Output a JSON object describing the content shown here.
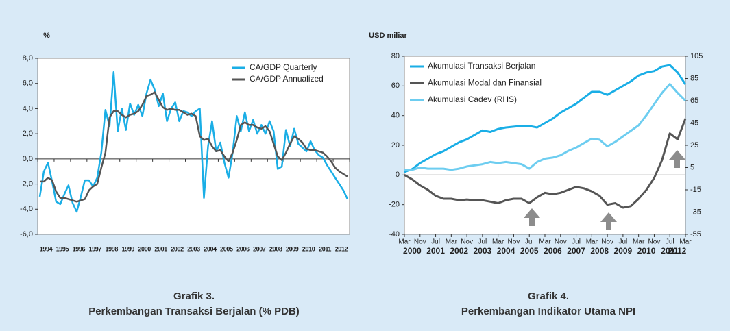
{
  "chart_data": [
    {
      "type": "line",
      "ylabel": "%",
      "title": "Grafik 3.",
      "subtitle": "Perkembangan Transaksi Berjalan (% PDB)",
      "legend": "upper right",
      "categories": [
        "1994",
        null,
        null,
        null,
        "1995",
        null,
        null,
        null,
        "1996",
        null,
        null,
        null,
        "1997",
        null,
        null,
        null,
        "1998",
        null,
        null,
        null,
        "1999",
        null,
        null,
        null,
        "2000",
        null,
        null,
        null,
        "2001",
        null,
        null,
        null,
        "2002",
        null,
        null,
        null,
        "2003",
        null,
        null,
        null,
        "2004",
        null,
        null,
        null,
        "2005",
        null,
        null,
        null,
        "2006",
        null,
        null,
        null,
        "2007",
        null,
        null,
        null,
        "2008",
        null,
        null,
        null,
        "2009",
        null,
        null,
        null,
        "2010",
        null,
        null,
        null,
        "2011",
        null,
        null,
        null,
        "2012",
        null,
        null,
        null
      ],
      "ylim": [
        -6,
        8
      ],
      "yticks": [
        {
          "value": -6,
          "label": "-6,0"
        },
        {
          "value": -4,
          "label": "-4,0"
        },
        {
          "value": -2,
          "label": "-2,0"
        },
        {
          "value": 0,
          "label": "0,0"
        },
        {
          "value": 2,
          "label": "2,0"
        },
        {
          "value": 4,
          "label": "4,0"
        },
        {
          "value": 6,
          "label": "6,0"
        },
        {
          "value": 8,
          "label": "8,0"
        }
      ],
      "series": [
        {
          "name": "CA/GDP Quarterly",
          "color": "#1aaee6",
          "values": [
            -3.0,
            -1.0,
            -0.3,
            -1.8,
            -3.4,
            -3.6,
            -2.8,
            -2.1,
            -3.5,
            -4.2,
            -3.0,
            -1.7,
            -1.7,
            -2.2,
            -1.5,
            0.5,
            3.9,
            2.6,
            6.9,
            2.2,
            4.0,
            2.3,
            4.4,
            3.5,
            4.3,
            3.4,
            5.2,
            6.3,
            5.5,
            4.2,
            5.2,
            3.0,
            4.0,
            4.5,
            3.0,
            3.8,
            3.7,
            3.4,
            3.8,
            4.0,
            -3.1,
            1.0,
            3.0,
            0.6,
            1.3,
            -0.3,
            -1.5,
            0.5,
            3.4,
            2.2,
            3.7,
            2.2,
            3.1,
            2.0,
            2.7,
            2.0,
            3.0,
            2.2,
            -0.8,
            -0.6,
            2.3,
            1.0,
            2.4,
            1.2,
            0.9,
            0.6,
            1.4,
            0.7,
            0.3,
            0.1,
            -0.5,
            -1.0,
            -1.5,
            -2.0,
            -2.5,
            -3.2
          ]
        },
        {
          "name": "CA/GDP Annualized",
          "color": "#555555",
          "values": [
            -1.8,
            -1.8,
            -1.5,
            -1.7,
            -2.6,
            -3.1,
            -3.1,
            -3.2,
            -3.3,
            -3.4,
            -3.3,
            -3.2,
            -2.5,
            -2.2,
            -2.0,
            -0.7,
            0.5,
            3.3,
            3.8,
            3.8,
            3.5,
            3.3,
            3.5,
            3.6,
            3.8,
            4.3,
            5.0,
            5.1,
            5.3,
            4.7,
            4.1,
            3.9,
            4.0,
            3.9,
            3.9,
            3.7,
            3.5,
            3.6,
            3.4,
            1.8,
            1.5,
            1.6,
            1.0,
            0.6,
            0.7,
            0.2,
            -0.2,
            0.5,
            1.5,
            2.7,
            2.9,
            2.7,
            2.7,
            2.5,
            2.4,
            2.6,
            2.2,
            1.2,
            0.2,
            -0.1,
            0.5,
            1.2,
            1.8,
            1.6,
            1.3,
            0.8,
            0.7,
            0.7,
            0.6,
            0.5,
            0.2,
            -0.2,
            -0.7,
            -1.0,
            -1.2,
            -1.4
          ]
        }
      ]
    },
    {
      "type": "line",
      "ylabel": "USD miliar",
      "title": "Grafik 4.",
      "subtitle": "Perkembangan Indikator Utama NPI",
      "legend": "upper left",
      "categories": [
        "Mar",
        null,
        "Nov",
        null,
        "Jul",
        null,
        "Mar",
        null,
        "Nov",
        null,
        "Jul",
        null,
        "Mar",
        null,
        "Nov",
        null,
        "Jul",
        null,
        "Mar",
        null,
        "Nov",
        null,
        "Jul",
        null,
        "Mar",
        null,
        "Nov",
        null,
        "Jul",
        null,
        "Mar",
        null,
        "Nov",
        null,
        "Jul",
        null,
        "Mar"
      ],
      "years": [
        "2000",
        "2001",
        "2002",
        "2003",
        "2004",
        "2005",
        "2006",
        "2007",
        "2008",
        "2009",
        "2010",
        "2011",
        "2012"
      ],
      "ylim": [
        -40,
        80
      ],
      "yticks": [
        -40,
        -20,
        0,
        20,
        40,
        60,
        80
      ],
      "y2lim": [
        -55,
        105
      ],
      "y2ticks": [
        -55,
        -35,
        -15,
        5,
        25,
        45,
        65,
        85,
        105
      ],
      "series": [
        {
          "name": "Akumulasi Transaksi Berjalan",
          "color": "#1aaee6",
          "values": [
            2,
            4,
            8,
            11,
            14,
            16,
            19,
            22,
            24,
            27,
            30,
            29,
            31,
            32,
            32.5,
            33,
            33,
            32,
            35,
            38,
            42,
            45,
            48,
            52,
            56,
            56,
            54,
            57,
            60,
            63,
            67,
            69,
            70,
            73,
            74,
            69,
            61
          ]
        },
        {
          "name": "Akumulasi Modal dan Finansial",
          "color": "#555555",
          "values": [
            0,
            -3,
            -7,
            -10,
            -14,
            -16,
            -16,
            -17,
            -16.5,
            -17,
            -17,
            -18,
            -19,
            -17,
            -16,
            -16,
            -19,
            -15,
            -12,
            -13,
            -12,
            -10,
            -8,
            -9,
            -11,
            -14,
            -20,
            -19,
            -22,
            -21,
            -16,
            -10,
            -2,
            10,
            28,
            24,
            38
          ]
        },
        {
          "name": "Akumulasi Cadev (RHS)",
          "color": "#6dcdf0",
          "axis": "y2",
          "values": [
            3,
            3,
            5,
            4,
            4,
            4,
            3,
            4,
            6,
            7,
            8,
            10,
            9,
            10,
            9,
            8,
            4,
            10,
            13,
            14,
            16,
            20,
            23,
            27,
            31,
            30,
            24,
            28,
            33,
            38,
            43,
            52,
            62,
            72,
            80,
            72,
            65
          ]
        }
      ]
    }
  ]
}
